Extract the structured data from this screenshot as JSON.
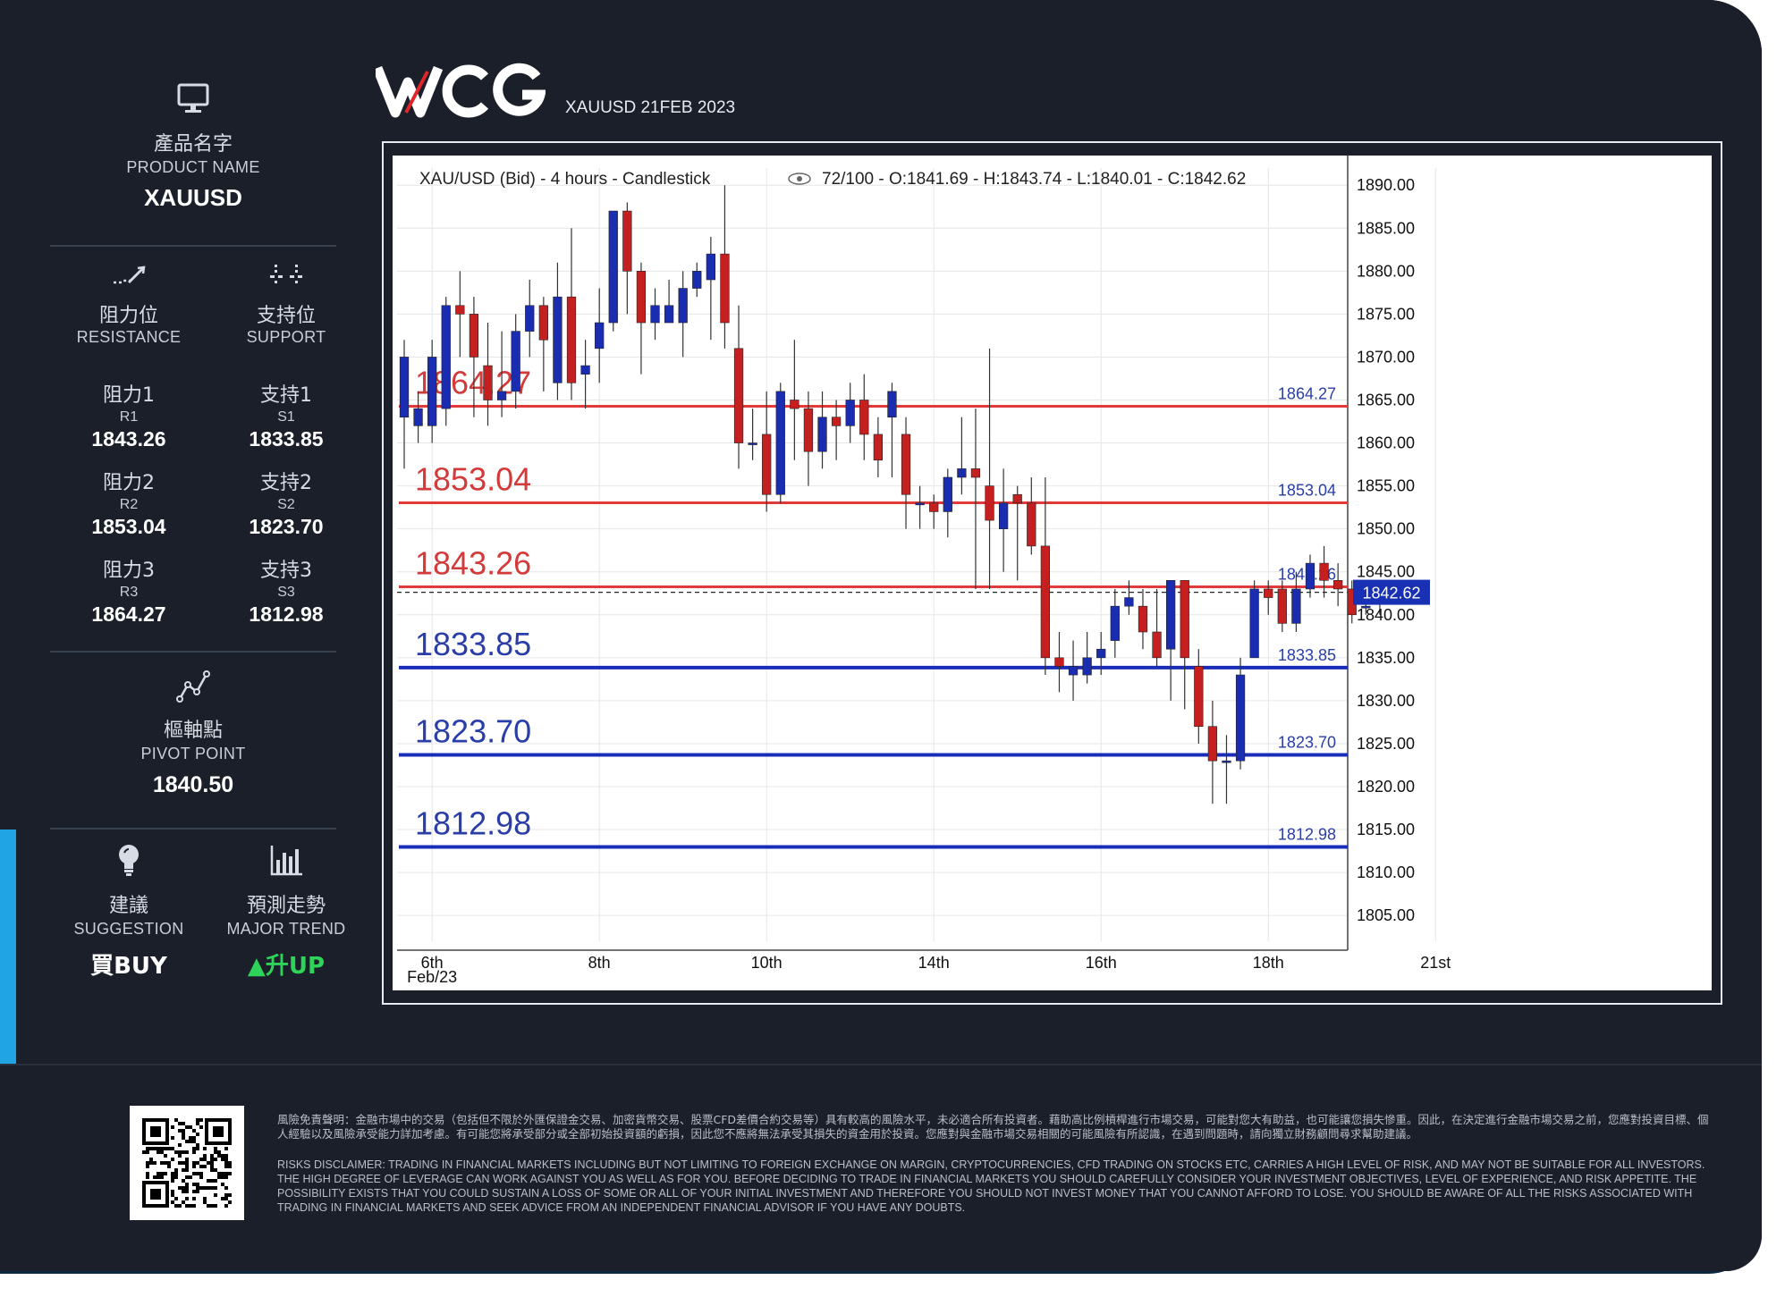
{
  "brand": {
    "logo_text": "WCG",
    "subtitle": "XAUUSD 21FEB 2023"
  },
  "product": {
    "zh": "產品名字",
    "en": "PRODUCT NAME",
    "value": "XAUUSD"
  },
  "resistance": {
    "zh": "阻力位",
    "en": "RESISTANCE",
    "levels": [
      {
        "zh": "阻力1",
        "code": "R1",
        "value": "1843.26"
      },
      {
        "zh": "阻力2",
        "code": "R2",
        "value": "1853.04"
      },
      {
        "zh": "阻力3",
        "code": "R3",
        "value": "1864.27"
      }
    ]
  },
  "support": {
    "zh": "支持位",
    "en": "SUPPORT",
    "levels": [
      {
        "zh": "支持1",
        "code": "S1",
        "value": "1833.85"
      },
      {
        "zh": "支持2",
        "code": "S2",
        "value": "1823.70"
      },
      {
        "zh": "支持3",
        "code": "S3",
        "value": "1812.98"
      }
    ]
  },
  "pivot": {
    "zh": "樞軸點",
    "en": "PIVOT POINT",
    "value": "1840.50"
  },
  "suggestion": {
    "zh": "建議",
    "en": "SUGGESTION",
    "value": "買BUY"
  },
  "trend": {
    "zh": "預測走勢",
    "en": "MAJOR TREND",
    "arrow": "▲",
    "value": "升UP",
    "color": "#2fd35a"
  },
  "icons": {
    "product": "monitor-icon",
    "resistance": "resistance-line-icon",
    "support": "support-dots-icon",
    "pivot": "pivot-chart-icon",
    "suggestion": "lightbulb-icon",
    "trend": "bar-chart-icon"
  },
  "chart_data": {
    "type": "candlestick",
    "header": "XAU/USD (Bid) - 4 hours - Candlestick",
    "ohlc_label": "72/100 - O:1841.69 - H:1843.74 - L:1840.01 - C:1842.62",
    "ylim": [
      1802,
      1892
    ],
    "y_ticks": [
      "1890.00",
      "1885.00",
      "1880.00",
      "1875.00",
      "1870.00",
      "1865.00",
      "1860.00",
      "1855.00",
      "1850.00",
      "1845.00",
      "1840.00",
      "1835.00",
      "1830.00",
      "1825.00",
      "1820.00",
      "1815.00",
      "1810.00",
      "1805.00"
    ],
    "x_ticks": [
      {
        "label": "6th",
        "sub": "Feb/23",
        "index": 2
      },
      {
        "label": "8th",
        "sub": "",
        "index": 14
      },
      {
        "label": "10th",
        "sub": "",
        "index": 26
      },
      {
        "label": "14th",
        "sub": "",
        "index": 38
      },
      {
        "label": "16th",
        "sub": "",
        "index": 50
      },
      {
        "label": "18th",
        "sub": "",
        "index": 62
      },
      {
        "label": "21st",
        "sub": "",
        "index": 74
      }
    ],
    "current_price": "1842.62",
    "levels": [
      {
        "value": 1864.27,
        "label": "1864.27",
        "kind": "resistance"
      },
      {
        "value": 1853.04,
        "label": "1853.04",
        "kind": "resistance"
      },
      {
        "value": 1843.26,
        "label": "1843.26",
        "kind": "resistance"
      },
      {
        "value": 1833.85,
        "label": "1833.85",
        "kind": "support"
      },
      {
        "value": 1823.7,
        "label": "1823.70",
        "kind": "support"
      },
      {
        "value": 1812.98,
        "label": "1812.98",
        "kind": "support"
      }
    ],
    "colors": {
      "up": "#1a2db0",
      "down": "#c42020",
      "resistance": "#e03a3a",
      "support": "#1a2db8"
    },
    "candles": [
      [
        1863,
        1870,
        1857,
        1872
      ],
      [
        1862,
        1864,
        1860,
        1866
      ],
      [
        1862,
        1870,
        1860,
        1872
      ],
      [
        1864,
        1876,
        1862,
        1877
      ],
      [
        1876,
        1875,
        1870,
        1880
      ],
      [
        1875,
        1870,
        1863,
        1877
      ],
      [
        1869,
        1865,
        1862,
        1874
      ],
      [
        1865,
        1866,
        1863,
        1873
      ],
      [
        1866,
        1873,
        1864,
        1875
      ],
      [
        1873,
        1876,
        1870,
        1879
      ],
      [
        1876,
        1872,
        1866,
        1877
      ],
      [
        1867,
        1877,
        1865,
        1881
      ],
      [
        1877,
        1867,
        1865,
        1885
      ],
      [
        1868,
        1869,
        1864,
        1872
      ],
      [
        1871,
        1874,
        1867,
        1878
      ],
      [
        1874,
        1887,
        1873,
        1887
      ],
      [
        1887,
        1880,
        1875,
        1888
      ],
      [
        1880,
        1874,
        1868,
        1881
      ],
      [
        1874,
        1876,
        1872,
        1878
      ],
      [
        1874,
        1876,
        1874,
        1879
      ],
      [
        1874,
        1878,
        1870,
        1880
      ],
      [
        1878,
        1880,
        1877,
        1881
      ],
      [
        1879,
        1882,
        1872,
        1884
      ],
      [
        1882,
        1874,
        1871,
        1890
      ],
      [
        1871,
        1860,
        1857,
        1876
      ],
      [
        1860,
        1860,
        1858,
        1864
      ],
      [
        1861,
        1854,
        1852,
        1866
      ],
      [
        1854,
        1866,
        1853,
        1867
      ],
      [
        1865,
        1864,
        1858,
        1872
      ],
      [
        1864,
        1859,
        1855,
        1866
      ],
      [
        1859,
        1863,
        1857,
        1866
      ],
      [
        1863,
        1862,
        1858,
        1865
      ],
      [
        1862,
        1865,
        1860,
        1867
      ],
      [
        1865,
        1861,
        1858,
        1868
      ],
      [
        1861,
        1858,
        1856,
        1863
      ],
      [
        1863,
        1866,
        1856,
        1867
      ],
      [
        1861,
        1854,
        1850,
        1863
      ],
      [
        1853,
        1853,
        1850,
        1855
      ],
      [
        1853,
        1852,
        1850,
        1854
      ],
      [
        1852,
        1856,
        1849,
        1857
      ],
      [
        1856,
        1857,
        1854,
        1863
      ],
      [
        1857,
        1856,
        1843,
        1864
      ],
      [
        1855,
        1851,
        1843,
        1871
      ],
      [
        1850,
        1853,
        1845,
        1857
      ],
      [
        1854,
        1853,
        1844,
        1855
      ],
      [
        1853,
        1848,
        1847,
        1856
      ],
      [
        1848,
        1835,
        1833,
        1856
      ],
      [
        1835,
        1834,
        1831,
        1838
      ],
      [
        1833,
        1834,
        1830,
        1837
      ],
      [
        1833,
        1835,
        1832,
        1838
      ],
      [
        1835,
        1836,
        1833,
        1838
      ],
      [
        1837,
        1841,
        1835,
        1843
      ],
      [
        1841,
        1842,
        1840,
        1844
      ],
      [
        1841,
        1838,
        1836,
        1843
      ],
      [
        1838,
        1835,
        1834,
        1843
      ],
      [
        1836,
        1844,
        1830,
        1844
      ],
      [
        1844,
        1835,
        1829,
        1844
      ],
      [
        1834,
        1827,
        1825,
        1836
      ],
      [
        1827,
        1823,
        1818,
        1830
      ],
      [
        1823,
        1823,
        1818,
        1826
      ],
      [
        1823,
        1833,
        1822,
        1835
      ],
      [
        1835,
        1843,
        1835,
        1844
      ],
      [
        1843,
        1842,
        1840,
        1844
      ],
      [
        1843,
        1839,
        1838,
        1844
      ],
      [
        1839,
        1843,
        1838,
        1845
      ],
      [
        1843,
        1846,
        1842,
        1847
      ],
      [
        1846,
        1844,
        1842,
        1848
      ],
      [
        1844,
        1843,
        1841,
        1846
      ],
      [
        1843,
        1840,
        1839,
        1844
      ],
      [
        1841,
        1841,
        1840,
        1843
      ],
      [
        1841.7,
        1842.6,
        1840,
        1843.7
      ]
    ]
  },
  "footer": {
    "disclaimer_zh": "風險免責聲明：金融市場中的交易（包括但不限於外匯保證金交易、加密貨幣交易、股票CFD差價合約交易等）具有較高的風險水平，未必適合所有投資者。藉助高比例槓桿進行市場交易，可能對您大有助益，也可能讓您損失慘重。因此，在決定進行金融市場交易之前，您應對投資目標、個人經驗以及風險承受能力詳加考慮。有可能您將承受部分或全部初始投資額的虧損，因此您不應將無法承受其損失的資金用於投資。您應對與金融市場交易相關的可能風險有所認識，在遇到問題時，請向獨立財務顧問尋求幫助建議。",
    "disclaimer_en": "RISKS DISCLAIMER: TRADING IN FINANCIAL MARKETS INCLUDING BUT NOT LIMITING TO FOREIGN EXCHANGE ON MARGIN, CRYPTOCURRENCIES, CFD TRADING ON STOCKS ETC, CARRIES A HIGH LEVEL OF RISK, AND MAY NOT BE SUITABLE FOR ALL INVESTORS. THE HIGH DEGREE OF LEVERAGE CAN WORK AGAINST YOU AS WELL AS FOR YOU. BEFORE DECIDING TO TRADE IN FINANCIAL MARKETS YOU SHOULD CAREFULLY CONSIDER YOUR INVESTMENT OBJECTIVES, LEVEL OF EXPERIENCE, AND RISK APPETITE. THE POSSIBILITY EXISTS THAT YOU COULD SUSTAIN A LOSS OF SOME OR ALL OF YOUR INITIAL INVESTMENT AND THEREFORE YOU SHOULD NOT INVEST MONEY THAT YOU CANNOT AFFORD TO LOSE. YOU SHOULD BE AWARE OF ALL THE RISKS ASSOCIATED WITH TRADING IN FINANCIAL MARKETS AND SEEK ADVICE FROM AN INDEPENDENT FINANCIAL ADVISOR IF YOU HAVE ANY DOUBTS."
  }
}
